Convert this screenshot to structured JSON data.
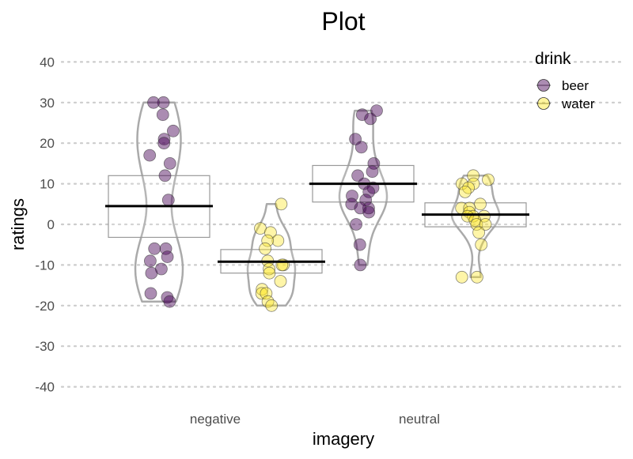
{
  "chart_data": {
    "type": "scatter",
    "subtype": "pirate plot (jittered points, violins, mean lines, confidence boxes)",
    "title": "Plot",
    "xlabel": "imagery",
    "ylabel": "ratings",
    "categories": [
      "negative",
      "neutral"
    ],
    "ylim": [
      -45,
      45
    ],
    "yticks": [
      -40,
      -30,
      -20,
      -10,
      0,
      10,
      20,
      30,
      40
    ],
    "grid": "horizontal dotted",
    "legend": {
      "title": "drink",
      "placement": "top-right",
      "entries": [
        "beer",
        "water"
      ]
    },
    "colors": {
      "beer": "#440154",
      "water": "#FDE725",
      "violin": "#aaaaaa",
      "box": "#999999",
      "mean": "#000000",
      "grid": "#cccccc"
    },
    "series": [
      {
        "name": "beer",
        "category": "negative",
        "mean": 4.5,
        "ci": [
          -3.2,
          12
        ],
        "values": [
          30,
          30,
          27,
          23,
          21,
          20,
          17,
          15,
          12,
          6,
          -6,
          -6,
          -8,
          -9,
          -11,
          -12,
          -17,
          -18,
          -19
        ]
      },
      {
        "name": "water",
        "category": "negative",
        "mean": -9.2,
        "ci": [
          -12,
          -6.2
        ],
        "values": [
          5,
          -1,
          -2,
          -4,
          -4,
          -6,
          -9,
          -10,
          -10,
          -11,
          -12,
          -14,
          -16,
          -17,
          -17,
          -19,
          -20
        ]
      },
      {
        "name": "beer",
        "category": "neutral",
        "mean": 10,
        "ci": [
          5.5,
          14.5
        ],
        "values": [
          28,
          27,
          26,
          21,
          19,
          15,
          13,
          12,
          10,
          9,
          8,
          7,
          6,
          5,
          4,
          4,
          3,
          0,
          -5,
          -10
        ]
      },
      {
        "name": "water",
        "category": "neutral",
        "mean": 2.4,
        "ci": [
          -0.6,
          5.3
        ],
        "values": [
          12,
          11,
          10,
          10,
          9,
          8,
          5,
          4,
          4,
          3,
          2,
          2,
          2,
          1,
          0,
          0,
          -2,
          -5,
          -13,
          -13
        ]
      }
    ]
  }
}
